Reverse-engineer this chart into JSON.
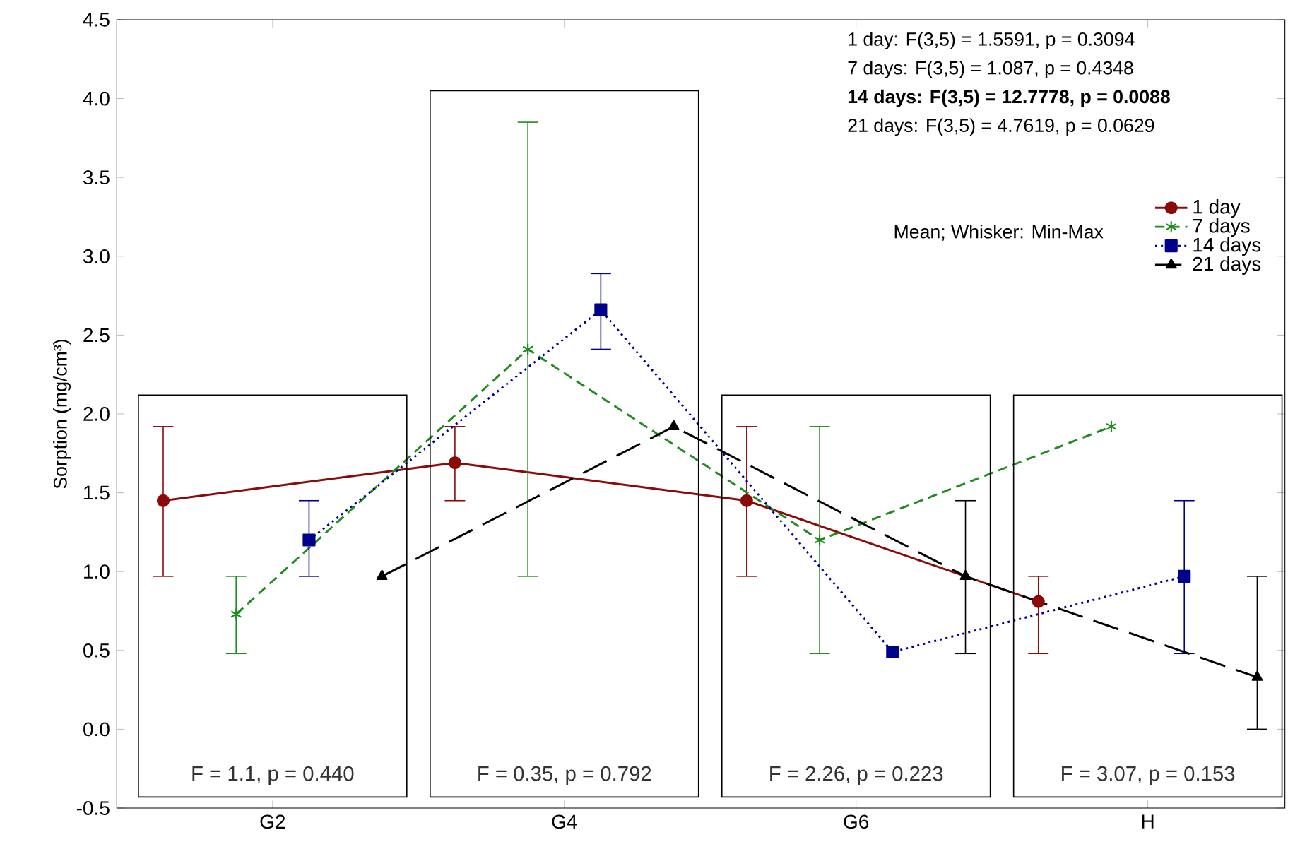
{
  "chart_data": {
    "type": "line",
    "ylabel": "Sorption (mg/cm³)",
    "categories": [
      "G2",
      "G4",
      "G6",
      "H"
    ],
    "ylim": [
      -0.5,
      4.5
    ],
    "yticks": [
      -0.5,
      {
        "value": 0,
        "label": "0.0"
      },
      0.5,
      {
        "value": 1,
        "label": "1.0"
      },
      1.5,
      {
        "value": 2,
        "label": "2.0"
      },
      2.5,
      {
        "value": 3,
        "label": "3.0"
      },
      3.5,
      {
        "value": 4,
        "label": "4.0"
      },
      4.5
    ],
    "legend": "top right",
    "series": [
      {
        "name": "1 day",
        "color": "#8b0a0a",
        "marker": "circle",
        "line_style": "solid",
        "values": [
          1.45,
          1.69,
          1.45,
          0.81
        ],
        "errors": [
          [
            0.97,
            1.92
          ],
          [
            1.45,
            1.92
          ],
          [
            0.97,
            1.92
          ],
          [
            0.48,
            0.97
          ]
        ]
      },
      {
        "name": "7 days",
        "color": "#1e8c1e",
        "marker": "cross",
        "line_style": "dashed",
        "values": [
          0.73,
          2.41,
          1.2,
          1.92
        ],
        "errors": [
          [
            0.48,
            0.97
          ],
          [
            0.97,
            3.85
          ],
          [
            0.48,
            1.92
          ],
          null
        ]
      },
      {
        "name": "14 days",
        "color": "#00008b",
        "marker": "square",
        "line_style": "dotted",
        "values": [
          1.2,
          2.66,
          0.49,
          0.97
        ],
        "errors": [
          [
            0.97,
            1.45
          ],
          [
            2.41,
            2.89
          ],
          null,
          [
            0.48,
            1.45
          ]
        ]
      },
      {
        "name": "21 days",
        "color": "#000000",
        "marker": "triangle",
        "line_style": "longdashed",
        "values": [
          0.97,
          1.92,
          0.97,
          0.33
        ],
        "errors": [
          null,
          null,
          [
            0.48,
            1.45
          ],
          [
            0.0,
            0.97
          ]
        ]
      }
    ],
    "annotations": [
      "1 day:   F(3,5) = 1.5591, p = 0.3094",
      "7 days:   F(3,5) = 1.087, p = 0.4348",
      "**14 days:   F(3,5) = 12.7778, p = 0.0088**",
      "21 days:   F(3,5) = 4.7619, p = 0.0629",
      "Mean; Whisker: Min-Max",
      "F = 1.1, p = 0.440",
      "F = 0.35, p = 0.792",
      "F = 2.26, p = 0.223",
      "F = 3.07, p = 0.153"
    ]
  }
}
